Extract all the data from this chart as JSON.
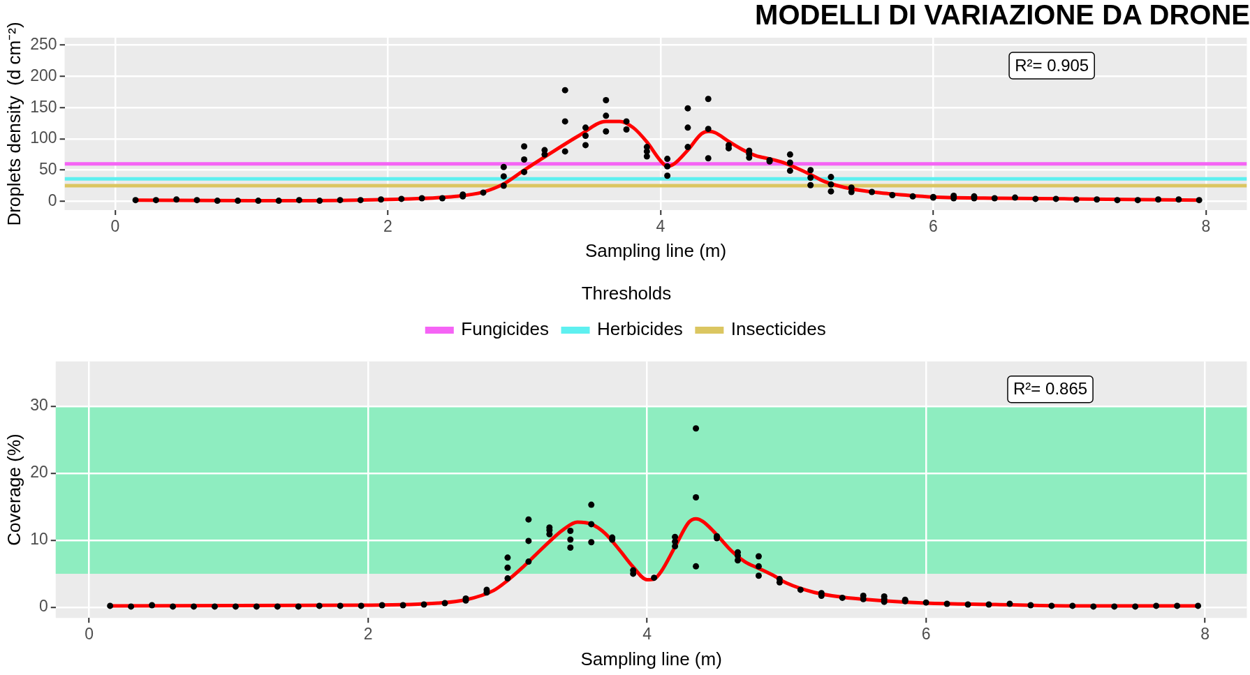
{
  "chart_data": [
    {
      "type": "scatter",
      "title": "MODELLI DI VARIAZIONE DA DRONE",
      "xlabel": "Sampling line (m)",
      "ylabel": "Droplets density  (d cm⁻²)",
      "xlim": [
        -0.37,
        8.3
      ],
      "xticks": [
        0,
        2,
        4,
        6,
        8
      ],
      "ylim": [
        -14,
        262
      ],
      "yticks": [
        0,
        50,
        100,
        150,
        200,
        250
      ],
      "grid": true,
      "legend": "bottom",
      "legend_title": "Thresholds",
      "annotations": [
        "R²= 0.905"
      ],
      "ref_lines": [
        {
          "axis": "y",
          "value": 60,
          "label": "Fungicides",
          "color": "#f564f5"
        },
        {
          "axis": "y",
          "value": 36,
          "label": "Herbicides",
          "color": "#5ef0f0"
        },
        {
          "axis": "y",
          "value": 25,
          "label": "Insecticides",
          "color": "#dbc661"
        }
      ],
      "series": [
        {
          "marker": "circle",
          "color": "#000000",
          "x": [
            0.15,
            0.3,
            0.45,
            0.6,
            0.75,
            0.9,
            1.05,
            1.2,
            1.35,
            1.5,
            1.65,
            1.8,
            1.95,
            2.1,
            2.25,
            2.4,
            2.55,
            2.55,
            2.7,
            2.85,
            2.85,
            2.85,
            3.0,
            3.0,
            3.0,
            3.15,
            3.15,
            3.3,
            3.3,
            3.3,
            3.45,
            3.45,
            3.45,
            3.6,
            3.6,
            3.6,
            3.75,
            3.75,
            3.9,
            3.9,
            3.9,
            4.05,
            4.05,
            4.05,
            4.2,
            4.2,
            4.2,
            4.35,
            4.35,
            4.35,
            4.5,
            4.5,
            4.65,
            4.65,
            4.65,
            4.8,
            4.8,
            4.95,
            4.95,
            4.95,
            5.1,
            5.1,
            5.1,
            5.25,
            5.25,
            5.25,
            5.4,
            5.4,
            5.55,
            5.7,
            5.85,
            6.0,
            6.0,
            6.15,
            6.15,
            6.3,
            6.3,
            6.45,
            6.6,
            6.75,
            6.9,
            7.05,
            7.2,
            7.35,
            7.5,
            7.65,
            7.8,
            7.95
          ],
          "values": [
            2,
            2,
            3,
            2,
            1,
            1,
            1,
            1,
            2,
            1,
            2,
            2,
            3,
            4,
            5,
            5,
            8,
            11,
            14,
            25,
            40,
            55,
            47,
            67,
            88,
            75,
            82,
            80,
            128,
            178,
            90,
            105,
            118,
            112,
            137,
            162,
            115,
            128,
            72,
            80,
            87,
            41,
            56,
            68,
            87,
            118,
            149,
            69,
            116,
            164,
            85,
            90,
            70,
            76,
            81,
            64,
            66,
            49,
            62,
            75,
            26,
            38,
            50,
            16,
            27,
            39,
            15,
            22,
            15,
            10,
            8,
            6,
            7,
            5,
            9,
            5,
            8,
            5,
            6,
            4,
            4,
            3,
            3,
            2,
            2,
            3,
            3,
            2
          ]
        },
        {
          "type": "line",
          "marker": "none",
          "color": "#ff0000",
          "x": [
            0.15,
            1,
            2,
            2.5,
            2.7,
            2.85,
            3.0,
            3.2,
            3.4,
            3.6,
            3.7,
            3.8,
            3.9,
            4.0,
            4.05,
            4.1,
            4.2,
            4.3,
            4.35,
            4.4,
            4.5,
            4.6,
            4.7,
            4.8,
            4.9,
            5.0,
            5.1,
            5.2,
            5.4,
            5.6,
            5.8,
            6.0,
            6.5,
            7.0,
            7.95
          ],
          "values": [
            2,
            1,
            3,
            8,
            15,
            28,
            50,
            78,
            105,
            128,
            128,
            118,
            95,
            65,
            56,
            60,
            82,
            108,
            112,
            110,
            96,
            83,
            73,
            68,
            62,
            53,
            43,
            32,
            20,
            14,
            10,
            7,
            5,
            4,
            2
          ]
        }
      ]
    },
    {
      "type": "scatter",
      "xlabel": "Sampling line (m)",
      "ylabel": "Coverage (%)",
      "xlim": [
        -0.24,
        8.3
      ],
      "xticks": [
        0,
        2,
        4,
        6,
        8
      ],
      "ylim": [
        -1.6,
        36.7
      ],
      "yticks": [
        0,
        10,
        20,
        30
      ],
      "grid": true,
      "annotations": [
        "R²= 0.865"
      ],
      "bands": [
        {
          "axis": "y",
          "from": 5,
          "to": 30,
          "color": "#8eedc0"
        }
      ],
      "series": [
        {
          "marker": "circle",
          "color": "#000000",
          "x": [
            0.15,
            0.3,
            0.45,
            0.6,
            0.75,
            0.9,
            1.05,
            1.2,
            1.35,
            1.5,
            1.65,
            1.8,
            1.95,
            2.1,
            2.25,
            2.4,
            2.55,
            2.7,
            2.7,
            2.85,
            2.85,
            3.0,
            3.0,
            3.0,
            3.15,
            3.15,
            3.15,
            3.3,
            3.3,
            3.3,
            3.45,
            3.45,
            3.45,
            3.6,
            3.6,
            3.6,
            3.75,
            3.75,
            3.9,
            3.9,
            4.05,
            4.2,
            4.2,
            4.2,
            4.35,
            4.35,
            4.35,
            4.5,
            4.5,
            4.65,
            4.65,
            4.65,
            4.8,
            4.8,
            4.8,
            4.95,
            4.95,
            5.1,
            5.25,
            5.25,
            5.4,
            5.55,
            5.55,
            5.7,
            5.7,
            5.7,
            5.85,
            5.85,
            6.0,
            6.15,
            6.3,
            6.45,
            6.6,
            6.75,
            6.9,
            7.05,
            7.2,
            7.35,
            7.5,
            7.65,
            7.8,
            7.95
          ],
          "values": [
            0.2,
            0.1,
            0.3,
            0.1,
            0.1,
            0.1,
            0.1,
            0.1,
            0.1,
            0.1,
            0.2,
            0.2,
            0.2,
            0.3,
            0.3,
            0.4,
            0.6,
            1.0,
            1.3,
            2.2,
            2.6,
            4.3,
            5.9,
            7.4,
            6.8,
            9.9,
            13.1,
            10.9,
            11.5,
            11.9,
            8.9,
            10.1,
            11.4,
            9.7,
            12.4,
            15.3,
            10.1,
            10.4,
            5.0,
            5.5,
            4.4,
            9.1,
            9.8,
            10.5,
            6.1,
            16.4,
            26.7,
            10.3,
            10.6,
            7.0,
            7.7,
            8.2,
            4.7,
            6.1,
            7.6,
            3.7,
            4.2,
            2.6,
            1.7,
            2.1,
            1.4,
            1.2,
            1.7,
            0.8,
            1.2,
            1.6,
            0.9,
            1.1,
            0.7,
            0.5,
            0.4,
            0.4,
            0.5,
            0.3,
            0.2,
            0.2,
            0.1,
            0.1,
            0.1,
            0.2,
            0.2,
            0.2
          ]
        },
        {
          "type": "line",
          "marker": "none",
          "color": "#ff0000",
          "x": [
            0.15,
            2,
            2.5,
            2.7,
            2.9,
            3.0,
            3.1,
            3.2,
            3.3,
            3.4,
            3.5,
            3.6,
            3.7,
            3.8,
            3.9,
            4.0,
            4.05,
            4.1,
            4.2,
            4.3,
            4.35,
            4.4,
            4.5,
            4.6,
            4.7,
            4.8,
            4.9,
            5.0,
            5.2,
            5.4,
            5.6,
            6.0,
            6.5,
            7.0,
            7.95
          ],
          "values": [
            0.2,
            0.3,
            0.6,
            1.1,
            2.5,
            4.0,
            5.8,
            7.8,
            9.8,
            11.6,
            12.7,
            12.4,
            11.0,
            8.6,
            6.0,
            4.1,
            4.2,
            5.3,
            9.0,
            12.7,
            13.2,
            12.8,
            10.8,
            8.5,
            6.8,
            5.8,
            4.8,
            3.6,
            2.2,
            1.5,
            1.1,
            0.6,
            0.4,
            0.2,
            0.2
          ]
        }
      ]
    }
  ]
}
